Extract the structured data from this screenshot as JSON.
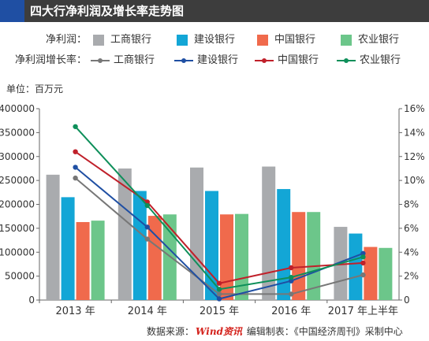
{
  "header": {
    "title": "四大行净利润及增长率走势图"
  },
  "legend": {
    "profit_label": "净利润：",
    "growth_label": "净利润增长率："
  },
  "unit": "单位：百万元",
  "source": {
    "prefix": "数据来源：",
    "logo": "Wind资讯",
    "suffix": " 编辑制表：《中国经济周刊》采制中心"
  },
  "colors": {
    "icbc_bar": "#a9abae",
    "ccb_bar": "#13a6d6",
    "boc_bar": "#f06a4c",
    "abc_bar": "#6cc68a",
    "icbc_line": "#777777",
    "ccb_line": "#1f4fa3",
    "boc_line": "#c0202a",
    "abc_line": "#0e8f5a"
  },
  "chart_data": {
    "type": "bar",
    "categories": [
      "2013 年",
      "2014 年",
      "2015 年",
      "2016 年",
      "2017 年上半年"
    ],
    "y_left_ticks": [
      "0",
      "50000",
      "100000",
      "150000",
      "200000",
      "250000",
      "300000",
      "350000",
      "400000"
    ],
    "y_right_ticks": [
      "0",
      "2%",
      "4%",
      "6%",
      "8%",
      "10%",
      "12%",
      "14%",
      "16%"
    ],
    "ylim_left": [
      0,
      400000
    ],
    "ylim_right": [
      0,
      16
    ],
    "series": [
      {
        "name": "工商银行",
        "values": [
          262000,
          275000,
          277000,
          279000,
          153000
        ],
        "color": "#a9abae"
      },
      {
        "name": "建设银行",
        "values": [
          215000,
          228000,
          228000,
          232000,
          139000
        ],
        "color": "#13a6d6"
      },
      {
        "name": "中国银行",
        "values": [
          163000,
          176000,
          179000,
          184000,
          111000
        ],
        "color": "#f06a4c"
      },
      {
        "name": "农业银行",
        "values": [
          166000,
          179000,
          180000,
          184000,
          109000
        ],
        "color": "#6cc68a"
      }
    ],
    "line_series": [
      {
        "name": "工商银行",
        "values": [
          10.2,
          5.1,
          0.5,
          0.5,
          2.1
        ],
        "color": "#777777"
      },
      {
        "name": "建设银行",
        "values": [
          11.1,
          6.1,
          0.1,
          1.6,
          3.9
        ],
        "color": "#1f4fa3"
      },
      {
        "name": "中国银行",
        "values": [
          12.4,
          8.2,
          1.4,
          2.7,
          3.1
        ],
        "color": "#c0202a"
      },
      {
        "name": "农业银行",
        "values": [
          14.5,
          7.9,
          0.9,
          1.9,
          3.6
        ],
        "color": "#0e8f5a"
      }
    ],
    "grid": false
  }
}
